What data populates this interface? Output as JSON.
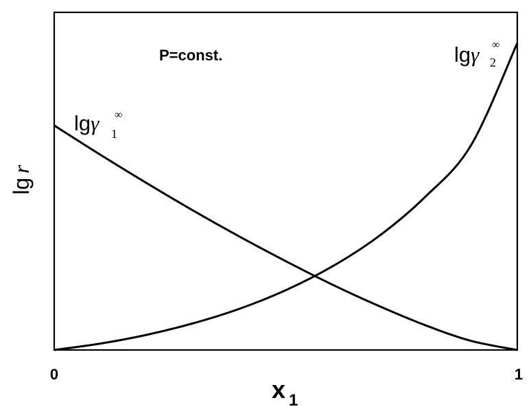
{
  "chart_data": {
    "type": "line",
    "annotation": "P=const.",
    "ylabel": {
      "prefix": "lg",
      "symbol": "r"
    },
    "xlabel": {
      "base": "x",
      "sub": "1"
    },
    "x_ticks": [
      "0",
      "1"
    ],
    "xlim": [
      0,
      1
    ],
    "ylim": [
      0,
      1
    ],
    "grid": false,
    "series": [
      {
        "name": "lgγ1∞",
        "label": {
          "prefix": "lg",
          "greek": "γ",
          "sub": "1",
          "sup": "∞"
        },
        "x": [
          0,
          0.1,
          0.2,
          0.3,
          0.4,
          0.5,
          0.6,
          0.7,
          0.8,
          0.9,
          1.0
        ],
        "y": [
          0.665,
          0.578,
          0.494,
          0.413,
          0.336,
          0.263,
          0.194,
          0.131,
          0.074,
          0.027,
          0.0
        ]
      },
      {
        "name": "lgγ2∞",
        "label": {
          "prefix": "lg",
          "greek": "γ",
          "sub": "2",
          "sup": "∞"
        },
        "x": [
          0,
          0.1,
          0.2,
          0.3,
          0.4,
          0.5,
          0.6,
          0.7,
          0.8,
          0.9,
          1.0
        ],
        "y": [
          0.0,
          0.019,
          0.045,
          0.079,
          0.122,
          0.177,
          0.247,
          0.336,
          0.452,
          0.606,
          0.909
        ]
      }
    ]
  }
}
